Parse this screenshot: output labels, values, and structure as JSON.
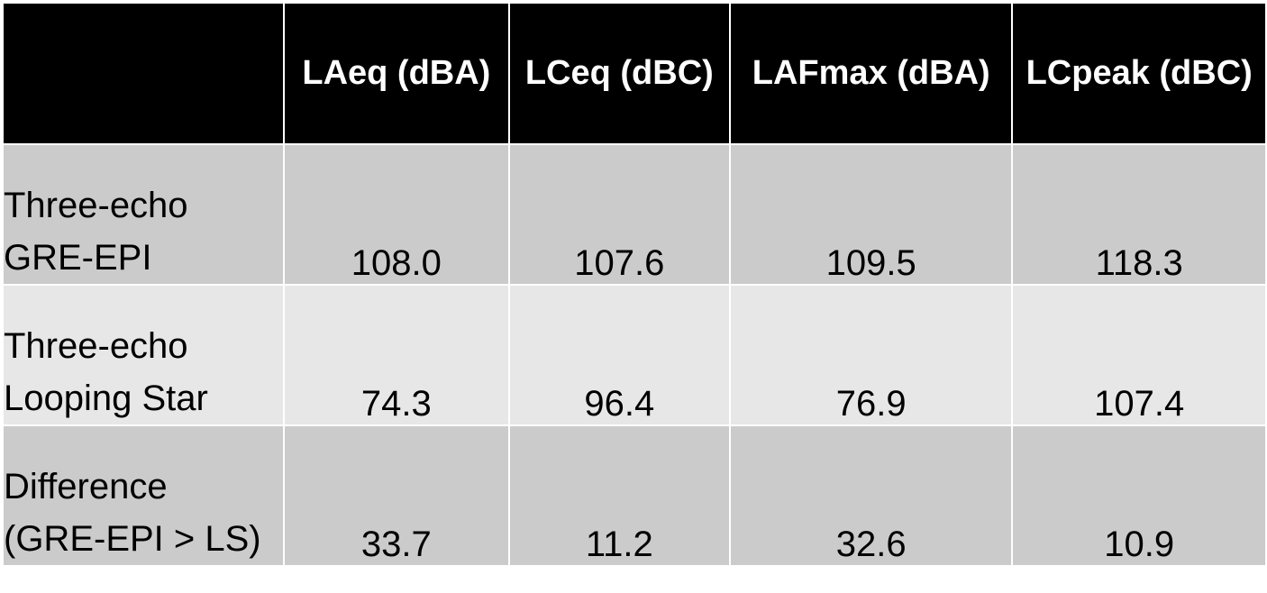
{
  "table": {
    "header": {
      "corner": "",
      "columns": [
        "LAeq (dBA)",
        "LCeq (dBC)",
        "LAFmax (dBA)",
        "LCpeak (dBC)"
      ]
    },
    "rows": [
      {
        "label_line1": "Three-echo",
        "label_line2": "GRE-EPI",
        "values": [
          "108.0",
          "107.6",
          "109.5",
          "118.3"
        ],
        "shade": "#cbcbcb"
      },
      {
        "label_line1": "Three-echo",
        "label_line2": "Looping Star",
        "values": [
          "74.3",
          "96.4",
          "76.9",
          "107.4"
        ],
        "shade": "#e7e7e7"
      },
      {
        "label_line1": "Difference",
        "label_line2": "(GRE-EPI > LS)",
        "values": [
          "33.7",
          "11.2",
          "32.6",
          "10.9"
        ],
        "shade": "#cbcbcb"
      }
    ],
    "colors": {
      "header_bg": "#000000",
      "header_text": "#ffffff",
      "grid": "#ffffff"
    }
  }
}
